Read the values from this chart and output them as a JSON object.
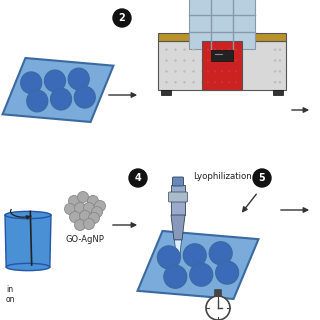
{
  "bg_color": "#ffffff",
  "lyophilization_label": "Lyophilization",
  "go_agnp_label": "GO-AgNP",
  "text_in": "in",
  "text_on": "on",
  "multiwell_color": "#7aabdb",
  "multiwell_dark": "#4a7ab0",
  "multiwell_edge": "#3a6aa0",
  "well_color": "#3a6ab8",
  "lyophilizer_body_color": "#d8d8d8",
  "lyophilizer_red_color": "#cc2222",
  "lyophilizer_top_color": "#b8cfe0",
  "lyophilizer_top_frame": "#8899aa",
  "lyophilizer_shelf_color": "#b8922a",
  "beaker_color": "#4a90d4",
  "beaker_edge": "#2255aa",
  "particle_color": "#aaaaaa",
  "particle_edge": "#888888",
  "pipette_top_color": "#6688bb",
  "pipette_body_color": "#99aacc",
  "pipette_tip_color": "#ccddee",
  "stopwatch_color": "#444444",
  "step_circle_color": "#111111",
  "arrow_color": "#333333",
  "dot_color": "#bbbbbb",
  "red_dot_color": "#cc3333"
}
